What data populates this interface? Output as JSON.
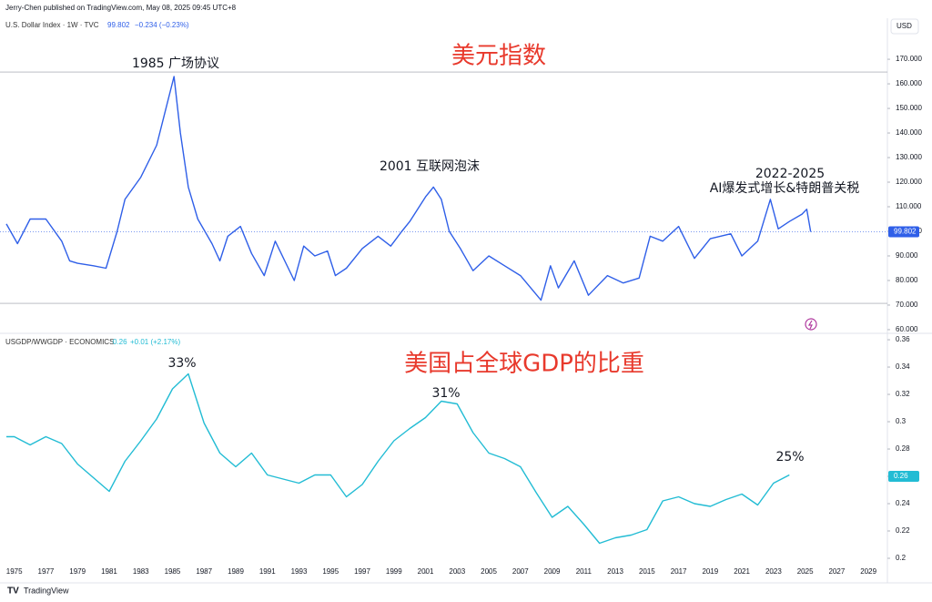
{
  "header": "Jerry-Chen published on TradingView.com, May 08, 2025 09:45 UTC+8",
  "footer": "TradingView",
  "chart_data": [
    {
      "type": "line",
      "title": "美元指数",
      "legend": "U.S. Dollar Index · 1W · TVC",
      "last": 99.802,
      "change": "−0.234 (−0.23%)",
      "currency": "USD",
      "annotations": [
        "1985 广场协议",
        "2001 互联网泡沫",
        "2022-2025",
        "AI爆发式增长&特朗普关税"
      ],
      "color": "#2f5fe8",
      "x": [
        1974.5,
        1975.2,
        1976,
        1977,
        1978,
        1978.5,
        1979,
        1980,
        1980.8,
        1981.5,
        1982,
        1983,
        1984,
        1985.1,
        1985.5,
        1986,
        1986.6,
        1987.5,
        1988,
        1988.5,
        1989.3,
        1990,
        1990.8,
        1991.5,
        1992.7,
        1993.3,
        1994,
        1994.8,
        1995.3,
        1996,
        1997,
        1998,
        1998.8,
        1999.5,
        2000,
        2001,
        2001.5,
        2002,
        2002.5,
        2003.2,
        2004,
        2005,
        2006,
        2007,
        2008.3,
        2008.9,
        2009.4,
        2010.4,
        2011.3,
        2012.5,
        2013.5,
        2014.5,
        2015.2,
        2016,
        2017,
        2018,
        2019,
        2020.3,
        2021,
        2022,
        2022.8,
        2023.3,
        2024,
        2024.8,
        2025.1,
        2025.35
      ],
      "values": [
        103,
        95,
        105,
        105,
        96,
        88,
        87,
        86,
        85,
        100,
        113,
        122,
        135,
        163,
        140,
        118,
        105,
        95,
        88,
        98,
        102,
        91,
        82,
        96,
        80,
        94,
        90,
        92,
        82,
        85,
        93,
        98,
        94,
        100,
        104,
        114,
        118,
        113,
        100,
        93,
        84,
        90,
        86,
        82,
        72,
        86,
        77,
        88,
        74,
        82,
        79,
        81,
        98,
        96,
        102,
        89,
        97,
        99,
        90,
        96,
        113,
        101,
        104,
        107,
        109,
        99.802
      ],
      "hlines": [
        164.8,
        70.7
      ],
      "xlim": [
        1974.5,
        2030.2
      ],
      "ylim": [
        58.5,
        186.7
      ],
      "yticks": [
        {
          "value": 60,
          "label": "60.000"
        },
        {
          "value": 70,
          "label": "70.000"
        },
        {
          "value": 80,
          "label": "80.000"
        },
        {
          "value": 90,
          "label": "90.000"
        },
        {
          "value": 100,
          "label": "100.000"
        },
        {
          "value": 110,
          "label": "110.000"
        },
        {
          "value": 120,
          "label": "120.000"
        },
        {
          "value": 130,
          "label": "130.000"
        },
        {
          "value": 140,
          "label": "140.000"
        },
        {
          "value": 150,
          "label": "150.000"
        },
        {
          "value": 160,
          "label": "160.000"
        },
        {
          "value": 170,
          "label": "170.000"
        }
      ]
    },
    {
      "type": "line",
      "title": "美国占全球GDP的比重",
      "legend": "USGDP/WWGDP · ECONOMICS",
      "last": 0.26,
      "change": "+0.01 (+2.17%)",
      "annotations": [
        "33%",
        "31%",
        "25%"
      ],
      "color": "#22bcd4",
      "x": [
        1974.5,
        1975,
        1976,
        1977,
        1978,
        1979,
        1980,
        1981,
        1982,
        1983,
        1984,
        1985,
        1986,
        1987,
        1988,
        1989,
        1990,
        1991,
        1992,
        1993,
        1994,
        1995,
        1996,
        1997,
        1998,
        1999,
        2000,
        2001,
        2002,
        2003,
        2004,
        2005,
        2006,
        2007,
        2008,
        2009,
        2010,
        2011,
        2012,
        2013,
        2014,
        2015,
        2016,
        2017,
        2018,
        2019,
        2020,
        2021,
        2022,
        2023,
        2024
      ],
      "values": [
        0.289,
        0.289,
        0.283,
        0.289,
        0.284,
        0.269,
        0.259,
        0.249,
        0.271,
        0.286,
        0.302,
        0.324,
        0.335,
        0.299,
        0.277,
        0.267,
        0.277,
        0.261,
        0.258,
        0.255,
        0.261,
        0.261,
        0.245,
        0.254,
        0.271,
        0.286,
        0.295,
        0.303,
        0.315,
        0.313,
        0.292,
        0.277,
        0.273,
        0.267,
        0.248,
        0.23,
        0.238,
        0.225,
        0.211,
        0.215,
        0.217,
        0.221,
        0.242,
        0.245,
        0.24,
        0.238,
        0.243,
        0.247,
        0.239,
        0.255,
        0.261
      ],
      "xlim": [
        1974.5,
        2030.2
      ],
      "ylim": [
        0.19,
        0.3647
      ],
      "yticks": [
        0.2,
        0.22,
        0.24,
        0.26,
        0.28,
        0.3,
        0.32,
        0.34,
        0.36
      ],
      "xticks": [
        1975,
        1977,
        1979,
        1981,
        1983,
        1985,
        1987,
        1989,
        1991,
        1993,
        1995,
        1997,
        1999,
        2001,
        2003,
        2005,
        2007,
        2009,
        2011,
        2013,
        2015,
        2017,
        2019,
        2021,
        2023,
        2025,
        2027,
        2029
      ]
    }
  ]
}
